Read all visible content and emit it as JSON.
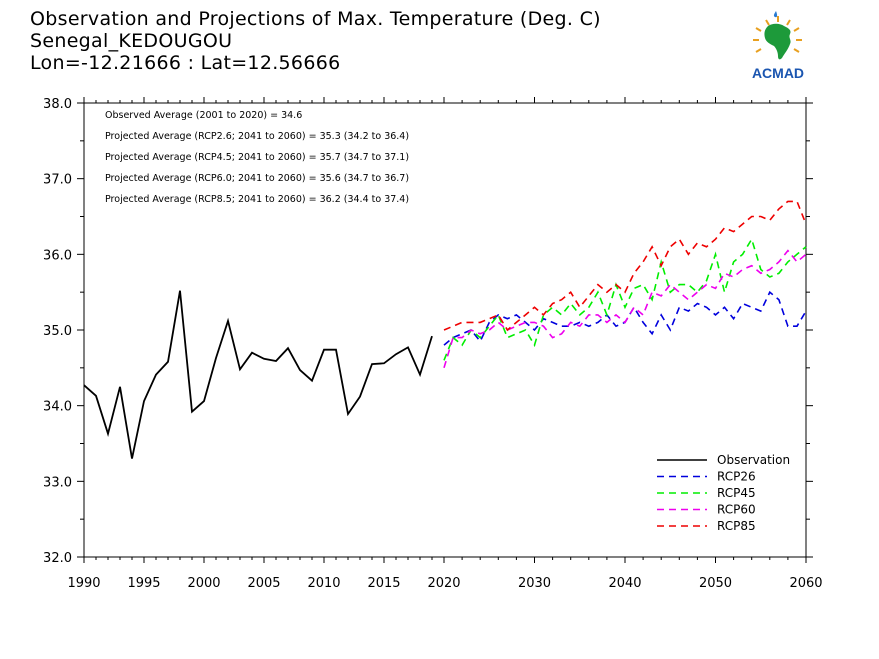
{
  "title": {
    "line1": "Observation and Projections of Max. Temperature (Deg. C)",
    "line2": "Senegal_KEDOUGOU",
    "line3": "Lon=-12.21666 : Lat=12.56666"
  },
  "logo": {
    "text": "ACMAD",
    "icon": "africa-map-logo"
  },
  "annotations": [
    "Observed Average (2001 to 2020) = 34.6",
    "Projected Average (RCP2.6; 2041 to 2060) = 35.3 (34.2 to 36.4)",
    "Projected Average (RCP4.5; 2041 to 2060) = 35.7 (34.7 to 37.1)",
    "Projected Average (RCP6.0; 2041 to 2060) = 35.6 (34.7 to 36.7)",
    "Projected Average (RCP8.5; 2041 to 2060) = 36.2 (34.4 to 37.4)"
  ],
  "chart_data": {
    "type": "line",
    "xlim": [
      1990,
      2060
    ],
    "ylim": [
      32.0,
      38.0
    ],
    "yticks": [
      "32.0",
      "33.0",
      "34.0",
      "35.0",
      "36.0",
      "37.0",
      "38.0"
    ],
    "xticks_left": [
      "1990",
      "1995",
      "2000",
      "2005",
      "2010",
      "2015",
      "2020"
    ],
    "xticks_right": [
      "2030",
      "2040",
      "2050",
      "2060"
    ],
    "legend_position": "bottom-right",
    "series": [
      {
        "name": "Observation",
        "color": "#000000",
        "dashed": false,
        "x": [
          1990,
          1991,
          1992,
          1993,
          1994,
          1995,
          1996,
          1997,
          1998,
          1999,
          2000,
          2001,
          2002,
          2003,
          2004,
          2005,
          2006,
          2007,
          2008,
          2009,
          2010,
          2011,
          2012,
          2013,
          2014,
          2015,
          2016,
          2017,
          2018,
          2019
        ],
        "y": [
          34.27,
          34.13,
          33.63,
          34.25,
          33.3,
          34.06,
          34.41,
          34.58,
          35.52,
          33.92,
          34.06,
          34.63,
          35.12,
          34.48,
          34.7,
          34.62,
          34.59,
          34.76,
          34.47,
          34.33,
          34.74,
          34.74,
          33.89,
          34.12,
          34.55,
          34.56,
          34.68,
          34.77,
          34.41,
          34.92
        ]
      },
      {
        "name": "RCP26",
        "color": "#0000dd",
        "dashed": true,
        "x": [
          2020,
          2021,
          2022,
          2023,
          2024,
          2025,
          2026,
          2027,
          2028,
          2029,
          2030,
          2031,
          2032,
          2033,
          2034,
          2035,
          2036,
          2037,
          2038,
          2039,
          2040,
          2041,
          2042,
          2043,
          2044,
          2045,
          2046,
          2047,
          2048,
          2049,
          2050,
          2051,
          2052,
          2053,
          2054,
          2055,
          2056,
          2057,
          2058,
          2059,
          2060
        ],
        "y": [
          34.8,
          34.9,
          34.95,
          35.0,
          34.85,
          35.1,
          35.2,
          35.15,
          35.2,
          35.1,
          35.0,
          35.15,
          35.1,
          35.05,
          35.05,
          35.1,
          35.05,
          35.1,
          35.2,
          35.05,
          35.1,
          35.3,
          35.1,
          34.95,
          35.2,
          35.0,
          35.3,
          35.25,
          35.35,
          35.3,
          35.2,
          35.3,
          35.15,
          35.35,
          35.3,
          35.25,
          35.5,
          35.4,
          35.05,
          35.05,
          35.25
        ]
      },
      {
        "name": "RCP45",
        "color": "#00ee00",
        "dashed": true,
        "x": [
          2020,
          2021,
          2022,
          2023,
          2024,
          2025,
          2026,
          2027,
          2028,
          2029,
          2030,
          2031,
          2032,
          2033,
          2034,
          2035,
          2036,
          2037,
          2038,
          2039,
          2040,
          2041,
          2042,
          2043,
          2044,
          2045,
          2046,
          2047,
          2048,
          2049,
          2050,
          2051,
          2052,
          2053,
          2054,
          2055,
          2056,
          2057,
          2058,
          2059,
          2060
        ],
        "y": [
          34.6,
          34.9,
          34.8,
          35.0,
          34.9,
          35.05,
          35.2,
          34.9,
          34.95,
          35.0,
          34.8,
          35.2,
          35.3,
          35.2,
          35.35,
          35.2,
          35.3,
          35.5,
          35.2,
          35.6,
          35.3,
          35.55,
          35.6,
          35.4,
          35.9,
          35.5,
          35.6,
          35.6,
          35.5,
          35.65,
          36.0,
          35.5,
          35.9,
          36.0,
          36.2,
          35.8,
          35.7,
          35.75,
          35.9,
          36.0,
          36.1
        ]
      },
      {
        "name": "RCP60",
        "color": "#ee00ee",
        "dashed": true,
        "x": [
          2020,
          2021,
          2022,
          2023,
          2024,
          2025,
          2026,
          2027,
          2028,
          2029,
          2030,
          2031,
          2032,
          2033,
          2034,
          2035,
          2036,
          2037,
          2038,
          2039,
          2040,
          2041,
          2042,
          2043,
          2044,
          2045,
          2046,
          2047,
          2048,
          2049,
          2050,
          2051,
          2052,
          2053,
          2054,
          2055,
          2056,
          2057,
          2058,
          2059,
          2060
        ],
        "y": [
          34.5,
          34.9,
          34.9,
          35.0,
          34.95,
          35.0,
          35.1,
          35.0,
          35.05,
          35.1,
          35.1,
          35.05,
          34.9,
          34.95,
          35.1,
          35.05,
          35.2,
          35.2,
          35.1,
          35.2,
          35.1,
          35.3,
          35.2,
          35.5,
          35.45,
          35.6,
          35.5,
          35.4,
          35.5,
          35.6,
          35.55,
          35.75,
          35.7,
          35.8,
          35.85,
          35.75,
          35.8,
          35.9,
          36.05,
          35.9,
          36.0
        ]
      },
      {
        "name": "RCP85",
        "color": "#ee0000",
        "dashed": true,
        "x": [
          2020,
          2021,
          2022,
          2023,
          2024,
          2025,
          2026,
          2027,
          2028,
          2029,
          2030,
          2031,
          2032,
          2033,
          2034,
          2035,
          2036,
          2037,
          2038,
          2039,
          2040,
          2041,
          2042,
          2043,
          2044,
          2045,
          2046,
          2047,
          2048,
          2049,
          2050,
          2051,
          2052,
          2053,
          2054,
          2055,
          2056,
          2057,
          2058,
          2059,
          2060
        ],
        "y": [
          35.0,
          35.05,
          35.1,
          35.1,
          35.1,
          35.15,
          35.2,
          35.0,
          35.1,
          35.2,
          35.3,
          35.2,
          35.35,
          35.4,
          35.5,
          35.3,
          35.45,
          35.6,
          35.5,
          35.6,
          35.5,
          35.75,
          35.9,
          36.1,
          35.85,
          36.1,
          36.2,
          36.0,
          36.15,
          36.1,
          36.2,
          36.35,
          36.3,
          36.4,
          36.5,
          36.5,
          36.45,
          36.6,
          36.7,
          36.7,
          36.4
        ]
      }
    ]
  }
}
